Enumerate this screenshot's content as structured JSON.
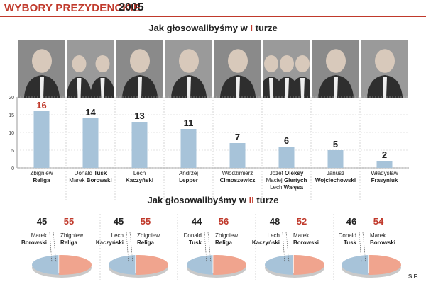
{
  "header": {
    "title_part1": "WYBORY PREZYDENCKIE",
    "title_part2": "2005"
  },
  "round1": {
    "title_prefix": "Jak głosowalibyśmy w ",
    "title_mark": "I",
    "title_suffix": " turze"
  },
  "round2": {
    "title_prefix": "Jak głosowalibyśmy w ",
    "title_mark": "II",
    "title_suffix": " turze"
  },
  "source": "S.F.",
  "colors": {
    "bar": "#a7c3d9",
    "pie_left": "#a7c3d9",
    "pie_right": "#f0a48e",
    "accent": "#c0392b"
  },
  "chart_data": [
    {
      "type": "bar",
      "ylim": [
        0,
        20
      ],
      "yticks": [
        0,
        5,
        10,
        15,
        20
      ],
      "grid": true,
      "categories": [
        [
          {
            "first": "Zbigniew",
            "last": "Religa"
          }
        ],
        [
          {
            "first": "Donald",
            "last": "Tusk"
          },
          {
            "first": "Marek",
            "last": "Borowski"
          }
        ],
        [
          {
            "first": "Lech",
            "last": "Kaczyński"
          }
        ],
        [
          {
            "first": "Andrzej",
            "last": "Lepper"
          }
        ],
        [
          {
            "first": "Włodzimierz",
            "last": "Cimoszewicz"
          }
        ],
        [
          {
            "first": "Józef",
            "last": "Oleksy"
          },
          {
            "first": "Maciej",
            "last": "Giertych"
          },
          {
            "first": "Lech",
            "last": "Wałęsa"
          }
        ],
        [
          {
            "first": "Janusz",
            "last": "Wojciechowski"
          }
        ],
        [
          {
            "first": "Władysław",
            "last": "Frasyniuk"
          }
        ]
      ],
      "values": [
        16,
        14,
        13,
        11,
        7,
        6,
        5,
        2
      ],
      "highlight_index": 0
    },
    {
      "type": "pie",
      "pairs": [
        {
          "left": {
            "first": "Marek",
            "last": "Borowski",
            "value": 45
          },
          "right": {
            "first": "Zbigniew",
            "last": "Religa",
            "value": 55
          }
        },
        {
          "left": {
            "first": "Lech",
            "last": "Kaczyński",
            "value": 45
          },
          "right": {
            "first": "Zbigniew",
            "last": "Religa",
            "value": 55
          }
        },
        {
          "left": {
            "first": "Donald",
            "last": "Tusk",
            "value": 44
          },
          "right": {
            "first": "Zbigniew",
            "last": "Religa",
            "value": 56
          }
        },
        {
          "left": {
            "first": "Lech",
            "last": "Kaczyński",
            "value": 48
          },
          "right": {
            "first": "Marek",
            "last": "Borowski",
            "value": 52
          }
        },
        {
          "left": {
            "first": "Donald",
            "last": "Tusk",
            "value": 46
          },
          "right": {
            "first": "Marek",
            "last": "Borowski",
            "value": 54
          }
        }
      ]
    }
  ]
}
